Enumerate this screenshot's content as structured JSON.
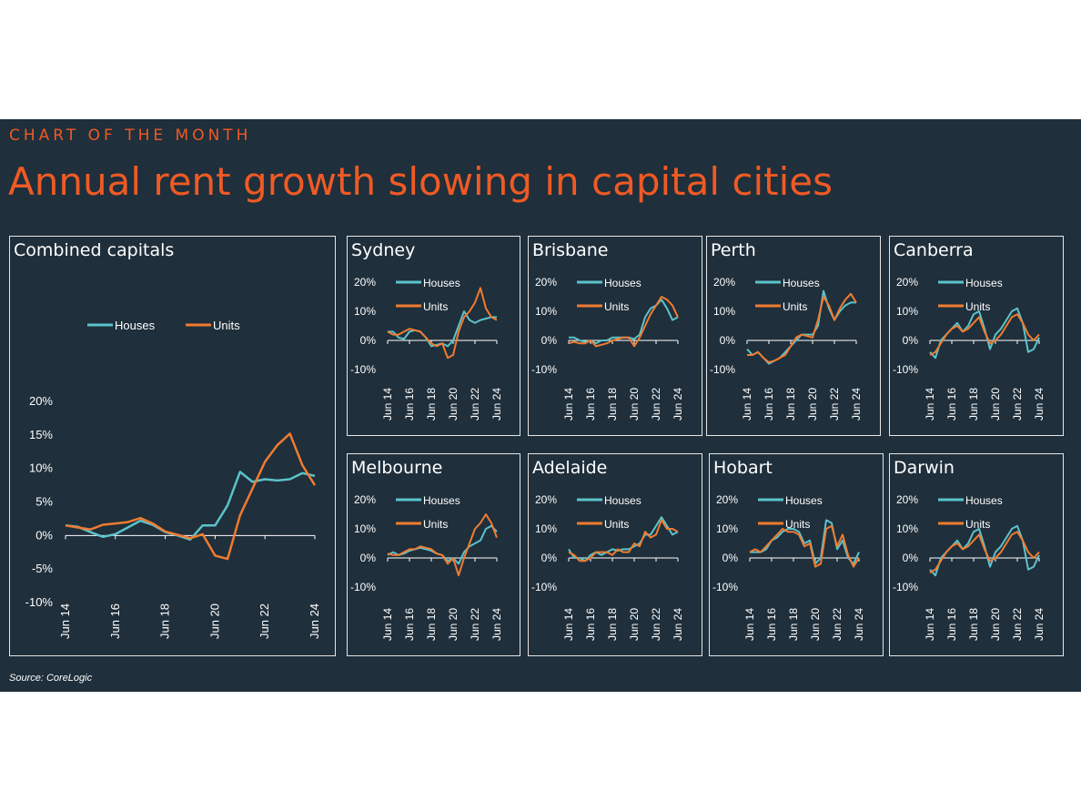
{
  "header": {
    "kicker": "CHART OF THE MONTH",
    "title": "Annual rent growth slowing in capital cities"
  },
  "source": "Source: CoreLogic",
  "colors": {
    "background": "#1f2f3b",
    "accent": "#ef5a24",
    "houses": "#5bc3cb",
    "units": "#f07b30",
    "text": "#ffffff",
    "frame": "#e6e6e6"
  },
  "chart_data": [
    {
      "type": "line",
      "title": "Combined capitals",
      "x": [
        "Jun 14",
        "Dec 14",
        "Jun 15",
        "Dec 15",
        "Jun 16",
        "Dec 16",
        "Jun 17",
        "Dec 17",
        "Jun 18",
        "Dec 18",
        "Jun 19",
        "Dec 19",
        "Jun 20",
        "Dec 20",
        "Jun 21",
        "Dec 21",
        "Jun 22",
        "Dec 22",
        "Jun 23",
        "Dec 23",
        "Jun 24"
      ],
      "xticks": [
        "Jun 14",
        "Jun 16",
        "Jun 18",
        "Jun 20",
        "Jun 22",
        "Jun 24"
      ],
      "yticks": [
        "20%",
        "15%",
        "10%",
        "5%",
        "0%",
        "-5%",
        "-10%"
      ],
      "ylim": [
        -10,
        20
      ],
      "series": [
        {
          "name": "Houses",
          "values": [
            1.5,
            1.3,
            0.5,
            -0.2,
            0.2,
            1.2,
            2.2,
            1.6,
            0.5,
            0,
            -0.6,
            1.5,
            1.5,
            4.5,
            9.5,
            8,
            8.4,
            8.2,
            8.4,
            9.3,
            8.9
          ]
        },
        {
          "name": "Units",
          "values": [
            1.5,
            1.2,
            0.9,
            1.6,
            1.8,
            2.0,
            2.6,
            1.8,
            0.6,
            0.1,
            -0.4,
            0.2,
            -3,
            -3.5,
            3,
            7,
            11,
            13.5,
            15.2,
            10.5,
            7.5
          ]
        }
      ],
      "legend": [
        "Houses",
        "Units"
      ],
      "legend_position": "top-left"
    },
    {
      "type": "line",
      "title": "Sydney",
      "x": [
        "Jun 14",
        "Dec 14",
        "Jun 15",
        "Dec 15",
        "Jun 16",
        "Dec 16",
        "Jun 17",
        "Dec 17",
        "Jun 18",
        "Dec 18",
        "Jun 19",
        "Dec 19",
        "Jun 20",
        "Dec 20",
        "Jun 21",
        "Dec 21",
        "Jun 22",
        "Dec 22",
        "Jun 23",
        "Dec 23",
        "Jun 24"
      ],
      "xticks": [
        "Jun 14",
        "Jun 16",
        "Jun 18",
        "Jun 20",
        "Jun 22",
        "Jun 24"
      ],
      "yticks": [
        "20%",
        "10%",
        "0%",
        "-10%"
      ],
      "ylim": [
        -10,
        20
      ],
      "series": [
        {
          "name": "Houses",
          "values": [
            3,
            3,
            1,
            0.5,
            3,
            3.5,
            3,
            1,
            -2,
            -1.5,
            -1,
            -2,
            0,
            5,
            10,
            7,
            6,
            7,
            7.5,
            8,
            8
          ]
        },
        {
          "name": "Units",
          "values": [
            3,
            2,
            2,
            3,
            4,
            3.5,
            3,
            1,
            -1,
            -2,
            -1,
            -6,
            -5,
            3,
            8,
            10,
            13,
            18,
            11,
            8,
            7
          ]
        }
      ],
      "legend": [
        "Houses",
        "Units"
      ],
      "legend_position": "top-left"
    },
    {
      "type": "line",
      "title": "Brisbane",
      "x": [
        "Jun 14",
        "Dec 14",
        "Jun 15",
        "Dec 15",
        "Jun 16",
        "Dec 16",
        "Jun 17",
        "Dec 17",
        "Jun 18",
        "Dec 18",
        "Jun 19",
        "Dec 19",
        "Jun 20",
        "Dec 20",
        "Jun 21",
        "Dec 21",
        "Jun 22",
        "Dec 22",
        "Jun 23",
        "Dec 23",
        "Jun 24"
      ],
      "xticks": [
        "Jun 14",
        "Jun 16",
        "Jun 18",
        "Jun 20",
        "Jun 22",
        "Jun 24"
      ],
      "yticks": [
        "20%",
        "10%",
        "0%",
        "-10%"
      ],
      "ylim": [
        -10,
        20
      ],
      "series": [
        {
          "name": "Houses",
          "values": [
            1,
            1,
            0,
            -0.5,
            0,
            -1,
            0,
            0,
            1,
            1,
            1,
            1,
            0.5,
            2,
            8,
            11,
            12,
            14,
            11,
            7,
            8
          ]
        },
        {
          "name": "Units",
          "values": [
            -1,
            -0.5,
            -1,
            -1,
            0,
            -2,
            -1.5,
            -1,
            0,
            0.5,
            1,
            1,
            -2,
            1,
            5,
            9,
            12,
            15,
            14,
            12,
            8
          ]
        }
      ],
      "legend": [
        "Houses",
        "Units"
      ],
      "legend_position": "top-left"
    },
    {
      "type": "line",
      "title": "Perth",
      "x": [
        "Jun 14",
        "Dec 14",
        "Jun 15",
        "Dec 15",
        "Jun 16",
        "Dec 16",
        "Jun 17",
        "Dec 17",
        "Jun 18",
        "Dec 18",
        "Jun 19",
        "Dec 19",
        "Jun 20",
        "Dec 20",
        "Jun 21",
        "Dec 21",
        "Jun 22",
        "Dec 22",
        "Jun 23",
        "Dec 23",
        "Jun 24"
      ],
      "xticks": [
        "Jun 14",
        "Jun 16",
        "Jun 18",
        "Jun 20",
        "Jun 22",
        "Jun 24"
      ],
      "yticks": [
        "20%",
        "10%",
        "0%",
        "-10%"
      ],
      "ylim": [
        -10,
        20
      ],
      "series": [
        {
          "name": "Houses",
          "values": [
            -3,
            -5,
            -4,
            -6,
            -8,
            -7,
            -6,
            -4,
            -2,
            0,
            2,
            2,
            2,
            5,
            17,
            11,
            7,
            10,
            12,
            13,
            13
          ]
        },
        {
          "name": "Units",
          "values": [
            -5,
            -5,
            -4,
            -6,
            -7.5,
            -7,
            -6,
            -5,
            -2,
            1,
            2,
            1.5,
            1,
            7,
            15,
            12,
            7,
            11,
            14,
            16,
            13
          ]
        }
      ],
      "legend": [
        "Houses",
        "Units"
      ],
      "legend_position": "top-left"
    },
    {
      "type": "line",
      "title": "Canberra",
      "x": [
        "Jun 14",
        "Dec 14",
        "Jun 15",
        "Dec 15",
        "Jun 16",
        "Dec 16",
        "Jun 17",
        "Dec 17",
        "Jun 18",
        "Dec 18",
        "Jun 19",
        "Dec 19",
        "Jun 20",
        "Dec 20",
        "Jun 21",
        "Dec 21",
        "Jun 22",
        "Dec 22",
        "Jun 23",
        "Dec 23",
        "Jun 24"
      ],
      "xticks": [
        "Jun 14",
        "Jun 16",
        "Jun 18",
        "Jun 20",
        "Jun 22",
        "Jun 24"
      ],
      "yticks": [
        "20%",
        "10%",
        "0%",
        "-10%"
      ],
      "ylim": [
        -10,
        20
      ],
      "series": [
        {
          "name": "Houses",
          "values": [
            -4,
            -6,
            0,
            2,
            4,
            6,
            3,
            5,
            9,
            10,
            4,
            -3,
            2,
            4,
            7,
            10,
            11,
            6,
            -4,
            -3,
            1
          ]
        },
        {
          "name": "Units",
          "values": [
            -5,
            -4,
            -1,
            2,
            4,
            5,
            3,
            4,
            6,
            8,
            3,
            -1,
            0,
            2,
            5,
            8,
            9,
            6,
            2,
            0,
            2
          ]
        }
      ],
      "legend": [
        "Houses",
        "Units"
      ],
      "legend_position": "top-left"
    },
    {
      "type": "line",
      "title": "Melbourne",
      "x": [
        "Jun 14",
        "Dec 14",
        "Jun 15",
        "Dec 15",
        "Jun 16",
        "Dec 16",
        "Jun 17",
        "Dec 17",
        "Jun 18",
        "Dec 18",
        "Jun 19",
        "Dec 19",
        "Jun 20",
        "Dec 20",
        "Jun 21",
        "Dec 21",
        "Jun 22",
        "Dec 22",
        "Jun 23",
        "Dec 23",
        "Jun 24"
      ],
      "xticks": [
        "Jun 14",
        "Jun 16",
        "Jun 18",
        "Jun 20",
        "Jun 22",
        "Jun 24"
      ],
      "yticks": [
        "20%",
        "10%",
        "0%",
        "-10%"
      ],
      "ylim": [
        -10,
        20
      ],
      "series": [
        {
          "name": "Houses",
          "values": [
            1,
            2,
            1,
            1.5,
            2.5,
            3,
            3.5,
            3,
            2.5,
            1.5,
            1,
            -1,
            0,
            -2,
            2,
            4,
            5,
            6,
            10,
            11,
            9
          ]
        },
        {
          "name": "Units",
          "values": [
            1.5,
            1,
            1,
            2,
            3,
            3,
            4,
            3.5,
            3,
            1.5,
            1,
            -2,
            0,
            -6,
            0,
            5,
            10,
            12,
            15,
            12,
            7
          ]
        }
      ],
      "legend": [
        "Houses",
        "Units"
      ],
      "legend_position": "top-left"
    },
    {
      "type": "line",
      "title": "Adelaide",
      "x": [
        "Jun 14",
        "Dec 14",
        "Jun 15",
        "Dec 15",
        "Jun 16",
        "Dec 16",
        "Jun 17",
        "Dec 17",
        "Jun 18",
        "Dec 18",
        "Jun 19",
        "Dec 19",
        "Jun 20",
        "Dec 20",
        "Jun 21",
        "Dec 21",
        "Jun 22",
        "Dec 22",
        "Jun 23",
        "Dec 23",
        "Jun 24"
      ],
      "xticks": [
        "Jun 14",
        "Jun 16",
        "Jun 18",
        "Jun 20",
        "Jun 22",
        "Jun 24"
      ],
      "yticks": [
        "20%",
        "10%",
        "0%",
        "-10%"
      ],
      "ylim": [
        -10,
        20
      ],
      "series": [
        {
          "name": "Houses",
          "values": [
            3,
            0,
            0,
            -1,
            1,
            2,
            1,
            2,
            3,
            2.5,
            3,
            3,
            4,
            5,
            8,
            8,
            11,
            14,
            11,
            8,
            9
          ]
        },
        {
          "name": "Units",
          "values": [
            2,
            1,
            -1,
            -1,
            0,
            2,
            2,
            2,
            1,
            3,
            2,
            2,
            5,
            4,
            9,
            7,
            8,
            13,
            10,
            10,
            9
          ]
        }
      ],
      "legend": [
        "Houses",
        "Units"
      ],
      "legend_position": "top-left"
    },
    {
      "type": "line",
      "title": "Hobart",
      "x": [
        "Jun 14",
        "Dec 14",
        "Jun 15",
        "Dec 15",
        "Jun 16",
        "Dec 16",
        "Jun 17",
        "Dec 17",
        "Jun 18",
        "Dec 18",
        "Jun 19",
        "Dec 19",
        "Jun 20",
        "Dec 20",
        "Jun 21",
        "Dec 21",
        "Jun 22",
        "Dec 22",
        "Jun 23",
        "Dec 23",
        "Jun 24"
      ],
      "xticks": [
        "Jun 14",
        "Jun 16",
        "Jun 18",
        "Jun 20",
        "Jun 22",
        "Jun 24"
      ],
      "yticks": [
        "20%",
        "10%",
        "0%",
        "-10%"
      ],
      "ylim": [
        -10,
        20
      ],
      "series": [
        {
          "name": "Houses",
          "values": [
            2,
            2,
            2,
            3,
            6,
            7,
            9,
            10,
            10,
            9,
            5,
            6,
            -2,
            0,
            13,
            12,
            3,
            6,
            0,
            -2,
            2
          ]
        },
        {
          "name": "Units",
          "values": [
            2,
            3,
            2,
            4,
            6,
            8,
            10,
            9,
            9,
            8,
            4,
            5,
            -3,
            -2,
            10,
            11,
            4,
            8,
            1,
            -3,
            0
          ]
        }
      ],
      "legend": [
        "Houses",
        "Units"
      ],
      "legend_position": "top-left"
    },
    {
      "type": "line",
      "title": "Darwin",
      "x": [
        "Jun 14",
        "Dec 14",
        "Jun 15",
        "Dec 15",
        "Jun 16",
        "Dec 16",
        "Jun 17",
        "Dec 17",
        "Jun 18",
        "Dec 18",
        "Jun 19",
        "Dec 19",
        "Jun 20",
        "Dec 20",
        "Jun 21",
        "Dec 21",
        "Jun 22",
        "Dec 22",
        "Jun 23",
        "Dec 23",
        "Jun 24"
      ],
      "xticks": [
        "Jun 14",
        "Jun 16",
        "Jun 18",
        "Jun 20",
        "Jun 22",
        "Jun 24"
      ],
      "yticks": [
        "20%",
        "10%",
        "0%",
        "-10%"
      ],
      "ylim": [
        -10,
        20
      ],
      "series": [
        {
          "name": "Houses",
          "values": [
            -4,
            -6,
            0,
            2,
            4,
            6,
            3,
            5,
            9,
            10,
            4,
            -3,
            2,
            4,
            7,
            10,
            11,
            6,
            -4,
            -3,
            1
          ]
        },
        {
          "name": "Units",
          "values": [
            -5,
            -4,
            -1,
            2,
            4,
            5,
            3,
            4,
            6,
            8,
            3,
            -1,
            0,
            2,
            5,
            8,
            9,
            6,
            2,
            0,
            2
          ]
        }
      ],
      "legend": [
        "Houses",
        "Units"
      ],
      "legend_position": "top-left"
    }
  ]
}
